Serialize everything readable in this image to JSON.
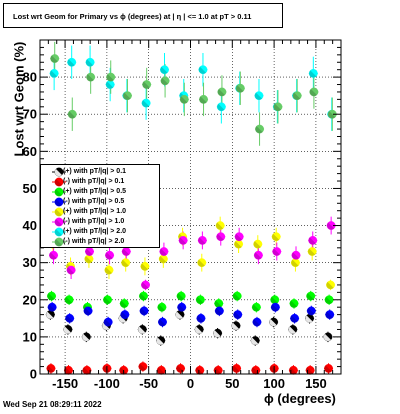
{
  "title": "Lost wrt Geom for Primary vs ϕ (degrees) at |  η  | <= 1.0 at pT > 0.11",
  "footer_date": "Wed Sep 21 08:29:11 2022",
  "chart_data": {
    "type": "scatter",
    "title": "Lost wrt Geom for Primary vs ϕ (degrees) at |  η  | <= 1.0 at pT > 0.11",
    "xlabel": "ϕ (degrees)",
    "ylabel": "Lost wrt Geom (%)",
    "xlim": [
      -180,
      180
    ],
    "ylim": [
      0,
      90
    ],
    "xticks": [
      -150,
      -100,
      -50,
      0,
      50,
      100,
      150
    ],
    "xtick_labels": [
      "-150",
      "-100",
      "-50",
      "0",
      "50",
      "100",
      "150"
    ],
    "yticks": [
      0,
      10,
      20,
      30,
      40,
      50,
      60,
      70,
      80
    ],
    "ytick_labels": [
      "0",
      "10",
      "20",
      "30",
      "40",
      "50",
      "60",
      "70",
      "80"
    ],
    "grid": true,
    "legend_position": "middle-left",
    "series": [
      {
        "name": "(+) with pT/|q| > 0.1",
        "color": "#000000",
        "x": [
          -165,
          -144,
          -122,
          -98,
          -78,
          -55,
          -33,
          -10,
          13,
          35,
          57,
          80,
          102,
          125,
          145,
          167
        ],
        "y": [
          16,
          12,
          10,
          13,
          15,
          12,
          9,
          16,
          12,
          11,
          13,
          9,
          14,
          12,
          15,
          10
        ]
      },
      {
        "name": "(-) with pT/|q| > 0.1",
        "color": "#ff0000",
        "x": [
          -165,
          -144,
          -122,
          -98,
          -78,
          -55,
          -33,
          -10,
          13,
          35,
          57,
          80,
          102,
          125,
          145,
          167
        ],
        "y": [
          1.5,
          1.0,
          1.0,
          1.5,
          1.0,
          2.0,
          1.0,
          1.5,
          1.0,
          1.0,
          1.5,
          1.0,
          1.5,
          1.0,
          1.0,
          1.5
        ]
      },
      {
        "name": "(+) with pT/|q| > 0.5",
        "color": "#00ff00",
        "x": [
          -165,
          -144,
          -122,
          -98,
          -78,
          -55,
          -33,
          -10,
          13,
          35,
          57,
          80,
          102,
          125,
          145,
          167
        ],
        "y": [
          21,
          20,
          18,
          20,
          19,
          21,
          18,
          21,
          20,
          19,
          21,
          18,
          20,
          19,
          21,
          20
        ]
      },
      {
        "name": "(-) with pT/|q| > 0.5",
        "color": "#0000ff",
        "x": [
          -165,
          -144,
          -122,
          -98,
          -78,
          -55,
          -33,
          -10,
          13,
          35,
          57,
          80,
          102,
          125,
          145,
          167
        ],
        "y": [
          18,
          15,
          17,
          14,
          16,
          17,
          14,
          18,
          15,
          17,
          16,
          14,
          18,
          15,
          17,
          16
        ]
      },
      {
        "name": "(+) with pT/|q| > 1.0",
        "color": "#ffff00",
        "x": [
          -165,
          -144,
          -122,
          -98,
          -78,
          -55,
          -33,
          -10,
          13,
          35,
          57,
          80,
          102,
          125,
          145,
          167
        ],
        "y": [
          35,
          29,
          31,
          28,
          30,
          29,
          31,
          37,
          30,
          40,
          35,
          35,
          37,
          30,
          33,
          24
        ]
      },
      {
        "name": "(-) with pT/|q| > 1.0",
        "color": "#ff00ff",
        "x": [
          -165,
          -144,
          -122,
          -98,
          -78,
          -55,
          -33,
          -10,
          13,
          35,
          57,
          80,
          102,
          125,
          145,
          167
        ],
        "y": [
          32,
          28,
          33,
          32,
          33,
          24,
          33,
          36,
          36,
          37,
          37,
          32,
          33,
          32,
          36,
          40
        ]
      },
      {
        "name": "(+) with pT/|q| > 2.0",
        "color": "#00ffff",
        "x": [
          -165,
          -144,
          -122,
          -98,
          -78,
          -55,
          -33,
          -10,
          13,
          35,
          57,
          80,
          102,
          125,
          145,
          167
        ],
        "y": [
          81,
          84,
          84,
          78,
          75,
          73,
          82,
          75,
          82,
          72,
          77,
          75,
          72,
          75,
          81,
          70
        ]
      },
      {
        "name": "(-) with pT/|q| > 2.0",
        "color": "#66cc66",
        "x": [
          -165,
          -144,
          -122,
          -98,
          -78,
          -55,
          -33,
          -10,
          13,
          35,
          57,
          80,
          102,
          125,
          145,
          167
        ],
        "y": [
          85,
          70,
          80,
          80,
          75,
          78,
          79,
          74,
          74,
          76,
          77,
          66,
          72,
          75,
          76,
          70
        ]
      }
    ]
  }
}
